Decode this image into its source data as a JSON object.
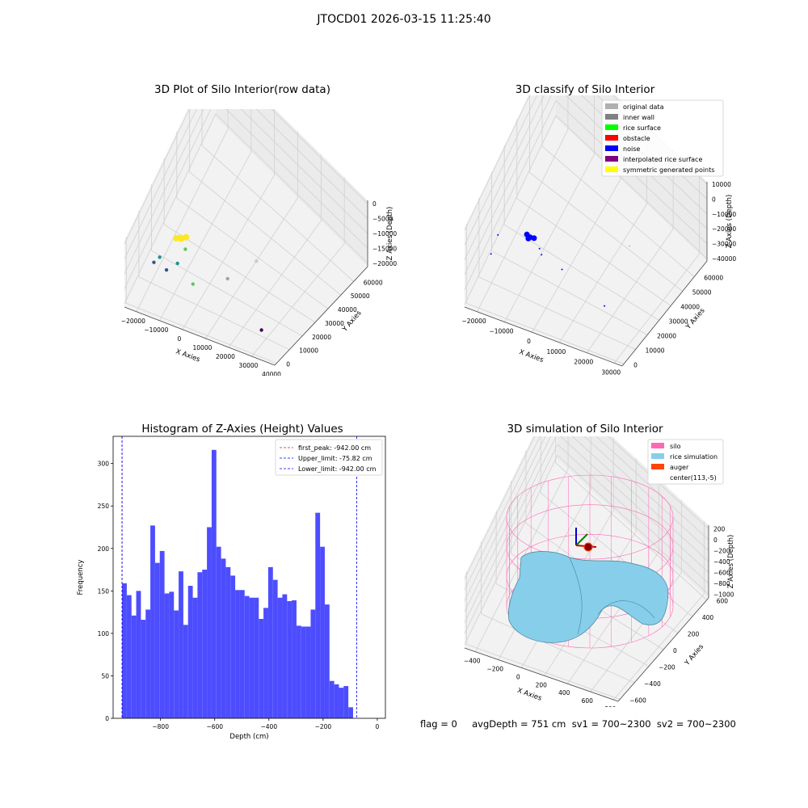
{
  "figure": {
    "suptitle": "JTOCD01 2026-03-15 11:25:40",
    "info_text": "flag = 0     avgDepth = 751 cm  sv1 = 700~2300  sv2 = 700~2300"
  },
  "chart_data": [
    {
      "type": "scatter",
      "title": "3D Plot of Silo Interior(row data)",
      "xlabel": "X Axies",
      "ylabel": "Y Axies",
      "zlabel": "Z Axies (Depth)",
      "x_ticks": [
        "−20000",
        "−10000",
        "0",
        "10000",
        "20000",
        "30000",
        "40000"
      ],
      "y_ticks": [
        "0",
        "10000",
        "20000",
        "30000",
        "40000",
        "50000",
        "60000"
      ],
      "z_ticks": [
        "0",
        "−5000",
        "−10000",
        "−15000",
        "−20000"
      ],
      "colors": [
        "#fde725",
        "#5ec962",
        "#21918c",
        "#3b528b",
        "#440154"
      ]
    },
    {
      "type": "scatter",
      "title": "3D classify of Silo Interior",
      "xlabel": "X Axies",
      "ylabel": "Y Axies",
      "zlabel": "Z Axies (Depth)",
      "x_ticks": [
        "−20000",
        "−10000",
        "0",
        "10000",
        "20000",
        "30000"
      ],
      "y_ticks": [
        "0",
        "10000",
        "20000",
        "30000",
        "40000",
        "50000",
        "60000"
      ],
      "z_ticks": [
        "10000",
        "0",
        "−10000",
        "−20000",
        "−30000",
        "−40000"
      ],
      "legend": [
        {
          "label": "original data",
          "color": "#b0b0b0"
        },
        {
          "label": "inner wall",
          "color": "#808080"
        },
        {
          "label": "rice surface",
          "color": "#00ff00"
        },
        {
          "label": "obstacle",
          "color": "#ff0000"
        },
        {
          "label": "noise",
          "color": "#0000ff"
        },
        {
          "label": "interpolated rice surface",
          "color": "#800080"
        },
        {
          "label": "symmetric generated points",
          "color": "#ffff00"
        }
      ]
    },
    {
      "type": "bar",
      "title": "Histogram of Z-Axies (Height) Values",
      "xlabel": "Depth (cm)",
      "ylabel": "Frequency",
      "xlim": [
        -975,
        30
      ],
      "ylim": [
        0,
        332
      ],
      "bin_start": -942.0,
      "bin_width": 17.4,
      "values": [
        159,
        145,
        121,
        150,
        116,
        128,
        227,
        183,
        197,
        147,
        149,
        127,
        173,
        110,
        156,
        142,
        172,
        175,
        225,
        316,
        202,
        188,
        178,
        168,
        151,
        151,
        144,
        142,
        142,
        117,
        130,
        178,
        163,
        142,
        146,
        138,
        139,
        109,
        108,
        108,
        128,
        242,
        202,
        134,
        44,
        40,
        36,
        38,
        13
      ],
      "bar_color": "#4d4dff",
      "x_ticks": [
        -800,
        -600,
        -400,
        -200,
        0
      ],
      "y_ticks": [
        0,
        50,
        100,
        150,
        200,
        250,
        300
      ],
      "vlines": [
        {
          "label": "first_peak: -942.00 cm",
          "x": -942.0,
          "color": "#ff0000"
        },
        {
          "label": "Upper_limit: -75.82 cm",
          "x": -75.82,
          "color": "#0000ff"
        },
        {
          "label": "Lower_limit: -942.00 cm",
          "x": -942.0,
          "color": "#0000ff"
        }
      ]
    },
    {
      "type": "surface",
      "title": "3D simulation of Silo Interior",
      "xlabel": "X Axies",
      "ylabel": "Y Axies",
      "zlabel": "Z Axies (Depth)",
      "x_ticks": [
        "−400",
        "−200",
        "0",
        "200",
        "400",
        "600",
        "800"
      ],
      "y_ticks": [
        "−600",
        "−400",
        "−200",
        "0",
        "200",
        "400",
        "600"
      ],
      "z_ticks": [
        "200",
        "0",
        "−200",
        "−400",
        "−600",
        "−800",
        "−1000"
      ],
      "legend": [
        {
          "label": "silo",
          "color": "#ff69b4"
        },
        {
          "label": "rice simulation",
          "color": "#87ceeb"
        },
        {
          "label": "auger",
          "color": "#ff4500"
        },
        {
          "label": "center(113,-5)",
          "color": ""
        }
      ]
    }
  ]
}
